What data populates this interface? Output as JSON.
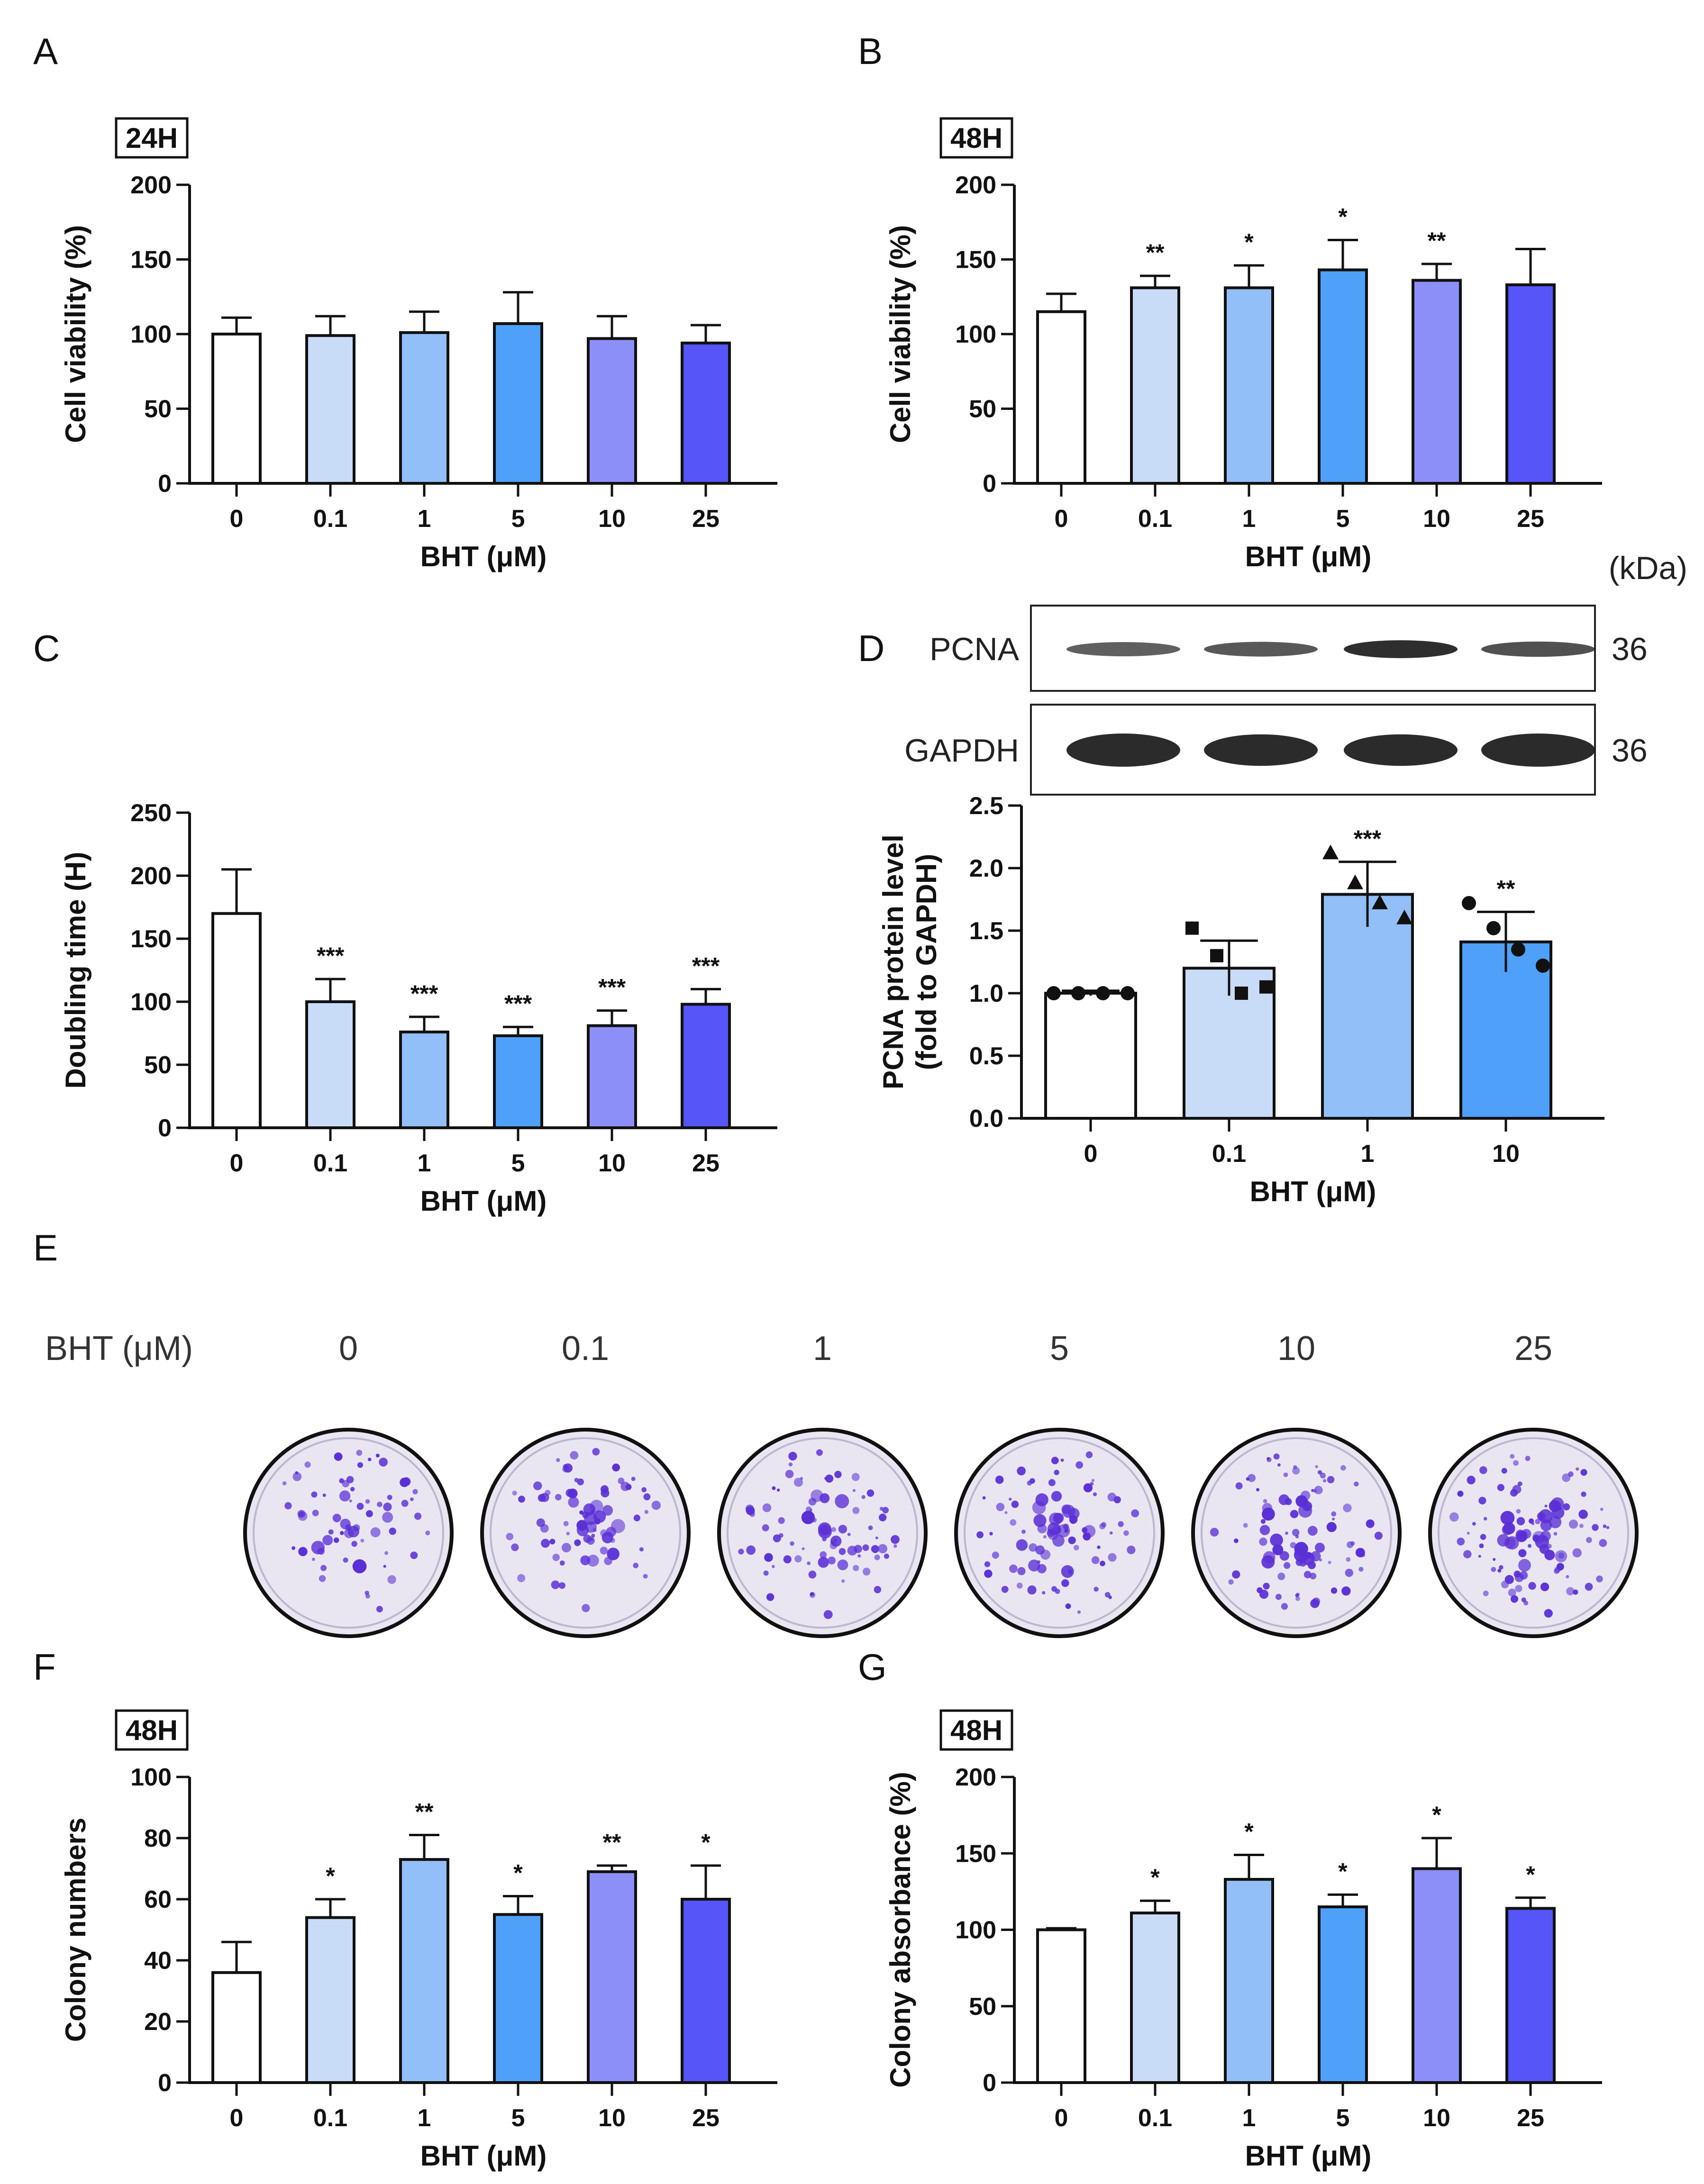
{
  "colors": {
    "bars": [
      "#ffffff",
      "#c8dcf8",
      "#92bff8",
      "#4fa0f9",
      "#8d8ff9",
      "#5555f8"
    ],
    "axis": "#111111",
    "stain": "#5a2fd6",
    "dish": "#e9e6f1"
  },
  "chart_data": [
    {
      "panel": "A",
      "type": "bar",
      "tag": "24H",
      "categories": [
        "0",
        "0.1",
        "1",
        "5",
        "10",
        "25"
      ],
      "values": [
        100,
        99,
        101,
        107,
        97,
        94
      ],
      "errors": [
        11,
        13,
        14,
        21,
        15,
        12
      ],
      "significance": [
        "",
        "",
        "",
        "",
        "",
        ""
      ],
      "xlabel": "BHT (μM)",
      "ylabel": "Cell viability (%)",
      "ylim": [
        0,
        200
      ],
      "yticks": [
        "0",
        "50",
        "100",
        "150",
        "200"
      ]
    },
    {
      "panel": "B",
      "type": "bar",
      "tag": "48H",
      "categories": [
        "0",
        "0.1",
        "1",
        "5",
        "10",
        "25"
      ],
      "values": [
        115,
        131,
        131,
        143,
        136,
        133
      ],
      "errors": [
        12,
        8,
        15,
        20,
        11,
        24
      ],
      "significance": [
        "",
        "**",
        "*",
        "*",
        "**",
        ""
      ],
      "xlabel": "BHT (μM)",
      "ylabel": "Cell viability (%)",
      "ylim": [
        0,
        200
      ],
      "yticks": [
        "0",
        "50",
        "100",
        "150",
        "200"
      ]
    },
    {
      "panel": "C",
      "type": "bar",
      "tag": "",
      "categories": [
        "0",
        "0.1",
        "1",
        "5",
        "10",
        "25"
      ],
      "values": [
        170,
        100,
        76,
        73,
        81,
        98
      ],
      "errors": [
        35,
        18,
        12,
        7,
        12,
        12
      ],
      "significance": [
        "",
        "***",
        "***",
        "***",
        "***",
        "***"
      ],
      "xlabel": "BHT (μM)",
      "ylabel": "Doubling time (H)",
      "ylim": [
        0,
        250
      ],
      "yticks": [
        "0",
        "50",
        "100",
        "150",
        "200",
        "250"
      ]
    },
    {
      "panel": "D",
      "type": "bar",
      "tag": "",
      "categories": [
        "0",
        "0.1",
        "1",
        "10"
      ],
      "values": [
        1.0,
        1.2,
        1.79,
        1.41
      ],
      "errors": [
        0.02,
        0.22,
        0.26,
        0.24
      ],
      "significance": [
        "",
        "",
        "***",
        "**"
      ],
      "points": [
        [
          1.0,
          1.0,
          1.0,
          1.0
        ],
        [
          1.52,
          1.3,
          1.0,
          1.05
        ],
        [
          2.12,
          1.88,
          1.72,
          1.6
        ],
        [
          1.72,
          1.52,
          1.35,
          1.22
        ]
      ],
      "point_markers": [
        "circle",
        "square",
        "triangle",
        "circle"
      ],
      "xlabel": "BHT (μM)",
      "ylabel": "PCNA protein level",
      "ylabel2": "(fold to GAPDH)",
      "ylim": [
        0,
        2.5
      ],
      "yticks": [
        "0.0",
        "0.5",
        "1.0",
        "1.5",
        "2.0",
        "2.5"
      ]
    },
    {
      "panel": "F",
      "type": "bar",
      "tag": "48H",
      "categories": [
        "0",
        "0.1",
        "1",
        "5",
        "10",
        "25"
      ],
      "values": [
        36,
        54,
        73,
        55,
        69,
        60
      ],
      "errors": [
        10,
        6,
        8,
        6,
        2,
        11
      ],
      "significance": [
        "",
        "*",
        "**",
        "*",
        "**",
        "*"
      ],
      "xlabel": "BHT (μM)",
      "ylabel": "Colony numbers",
      "ylim": [
        0,
        100
      ],
      "yticks": [
        "0",
        "20",
        "40",
        "60",
        "80",
        "100"
      ]
    },
    {
      "panel": "G",
      "type": "bar",
      "tag": "48H",
      "categories": [
        "0",
        "0.1",
        "1",
        "5",
        "10",
        "25"
      ],
      "values": [
        100,
        111,
        133,
        115,
        140,
        114
      ],
      "errors": [
        1,
        8,
        16,
        8,
        20,
        7
      ],
      "significance": [
        "",
        "*",
        "*",
        "*",
        "*",
        "*"
      ],
      "xlabel": "BHT (μM)",
      "ylabel": "Colony absorbance (%)",
      "ylim": [
        0,
        200
      ],
      "yticks": [
        "0",
        "50",
        "100",
        "150",
        "200"
      ]
    }
  ],
  "blot": {
    "panel": "D",
    "unit": "(kDa)",
    "rows": [
      {
        "label": "PCNA",
        "kda": "36",
        "intensity": [
          0.55,
          0.6,
          0.9,
          0.65
        ]
      },
      {
        "label": "GAPDH",
        "kda": "36",
        "intensity": [
          1.0,
          0.95,
          0.95,
          1.0
        ]
      }
    ]
  },
  "colony_assay": {
    "panel": "E",
    "label": "BHT (μM)",
    "doses": [
      "0",
      "0.1",
      "1",
      "5",
      "10",
      "25"
    ]
  }
}
